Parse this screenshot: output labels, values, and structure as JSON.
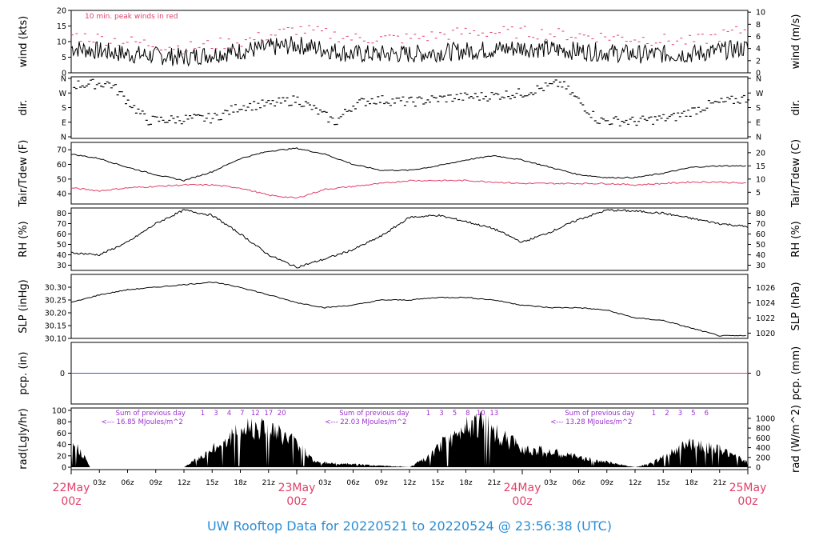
{
  "footer": {
    "title": "UW Rooftop Data for 20220521  to  20220524 @ 23:56:38  (UTC)"
  },
  "colors": {
    "primary_trace": "#000000",
    "peak_and_dewpoint": "#e0406a",
    "radiation_text": "#9b30d0",
    "precip_zero_line_before": "#2b5fd6",
    "precip_zero_line_after": "#e0406a",
    "date_labels": "#e0406a",
    "footer_title": "#2b8fd6"
  },
  "x_axis": {
    "hour_ticks": [
      "03z",
      "06z",
      "09z",
      "12z",
      "15z",
      "18z",
      "21z",
      "03z",
      "06z",
      "09z",
      "12z",
      "15z",
      "18z",
      "21z",
      "03z",
      "06z",
      "09z",
      "12z",
      "15z",
      "18z",
      "21z"
    ],
    "day_labels": [
      {
        "date": "22May",
        "time": "00z"
      },
      {
        "date": "23May",
        "time": "00z"
      },
      {
        "date": "24May",
        "time": "00z"
      },
      {
        "date": "25May",
        "time": "00z"
      }
    ]
  },
  "chart_data": [
    {
      "type": "line",
      "panel": "wind",
      "ylabel_left": "wind (kts)",
      "ylabel_right": "wind (m/s)",
      "ylim": [
        0,
        20
      ],
      "ticks_left": [
        "0",
        "5",
        "10",
        "15",
        "20"
      ],
      "ticks_right": [
        "0",
        "2",
        "4",
        "6",
        "8",
        "10"
      ],
      "annotation": "10 min. peak winds in red",
      "series": [
        {
          "name": "wind speed",
          "hours": [
            0,
            6,
            12,
            18,
            24,
            30,
            36,
            42,
            48,
            54,
            60,
            66,
            72
          ],
          "values": [
            8,
            6,
            5,
            7,
            9,
            6,
            6,
            7,
            8,
            7,
            6,
            6,
            8
          ]
        },
        {
          "name": "10 min. peak winds",
          "hours": [
            0,
            6,
            12,
            18,
            24,
            30,
            36,
            42,
            48,
            54,
            60,
            66,
            72
          ],
          "values": [
            12,
            10,
            8,
            10,
            14,
            11,
            11,
            13,
            13,
            12,
            11,
            10,
            14
          ]
        }
      ]
    },
    {
      "type": "scatter",
      "panel": "dir",
      "ylabel_left": "dir.",
      "ylabel_right": "dir.",
      "ticks": [
        "N",
        "E",
        "S",
        "W",
        "N"
      ],
      "series": [
        {
          "name": "direction (deg)",
          "hours": [
            0,
            4,
            8,
            12,
            15,
            18,
            21,
            24,
            28,
            30,
            32,
            36,
            40,
            44,
            48,
            52,
            56,
            60,
            64,
            68,
            72
          ],
          "values": [
            320,
            330,
            100,
            110,
            115,
            190,
            200,
            230,
            90,
            200,
            230,
            215,
            240,
            250,
            270,
            330,
            100,
            95,
            120,
            200,
            240
          ]
        }
      ]
    },
    {
      "type": "line",
      "panel": "temperature",
      "ylabel_left": "Tair/Tdew (F)",
      "ylabel_right": "Tair/Tdew (C)",
      "ylim": [
        33,
        75
      ],
      "ticks_left": [
        "40",
        "50",
        "60",
        "70"
      ],
      "ticks_right": [
        "5",
        "10",
        "15",
        "20"
      ],
      "series": [
        {
          "name": "air temperature",
          "hours": [
            0,
            3,
            6,
            9,
            12,
            15,
            18,
            21,
            24,
            27,
            30,
            33,
            36,
            39,
            42,
            45,
            48,
            51,
            54,
            57,
            60,
            63,
            66,
            69,
            72
          ],
          "values": [
            67,
            64,
            58,
            53,
            49,
            55,
            64,
            69,
            71,
            67,
            60,
            56,
            56,
            59,
            63,
            66,
            63,
            58,
            53,
            51,
            51,
            54,
            58,
            59,
            59
          ]
        },
        {
          "name": "dew point",
          "hours": [
            0,
            3,
            6,
            9,
            12,
            15,
            18,
            21,
            24,
            27,
            30,
            33,
            36,
            39,
            42,
            45,
            48,
            51,
            54,
            57,
            60,
            63,
            66,
            69,
            72
          ],
          "values": [
            44,
            42,
            44,
            45,
            46,
            46,
            44,
            39,
            37,
            43,
            45,
            47,
            49,
            49,
            49,
            48,
            47,
            47,
            47,
            47,
            46,
            47,
            48,
            48,
            47
          ]
        }
      ]
    },
    {
      "type": "line",
      "panel": "rh",
      "ylabel_left": "RH (%)",
      "ylabel_right": "RH (%)",
      "ylim": [
        25,
        85
      ],
      "ticks": [
        "30",
        "40",
        "50",
        "60",
        "70",
        "80"
      ],
      "series": [
        {
          "name": "relative humidity",
          "hours": [
            0,
            3,
            6,
            9,
            12,
            15,
            18,
            21,
            24,
            27,
            30,
            33,
            36,
            39,
            42,
            45,
            48,
            51,
            54,
            57,
            60,
            63,
            66,
            69,
            72
          ],
          "values": [
            42,
            40,
            52,
            70,
            83,
            78,
            60,
            40,
            28,
            36,
            45,
            58,
            76,
            78,
            72,
            65,
            52,
            62,
            74,
            83,
            82,
            80,
            75,
            70,
            67
          ]
        }
      ]
    },
    {
      "type": "line",
      "panel": "slp",
      "ylabel_left": "SLP (inHg)",
      "ylabel_right": "SLP (hPa)",
      "ylim": [
        30.1,
        30.35
      ],
      "ticks_left": [
        "30.10",
        "30.15",
        "30.20",
        "30.25",
        "30.30"
      ],
      "ticks_right": [
        "1020",
        "1022",
        "1024",
        "1026"
      ],
      "series": [
        {
          "name": "sea level pressure",
          "hours": [
            0,
            3,
            6,
            9,
            12,
            15,
            18,
            21,
            24,
            27,
            30,
            33,
            36,
            39,
            42,
            45,
            48,
            51,
            54,
            57,
            60,
            63,
            66,
            69,
            72
          ],
          "values": [
            30.24,
            30.27,
            30.29,
            30.3,
            30.31,
            30.32,
            30.3,
            30.27,
            30.24,
            30.22,
            30.23,
            30.25,
            30.25,
            30.26,
            30.26,
            30.25,
            30.23,
            30.22,
            30.22,
            30.21,
            30.18,
            30.17,
            30.14,
            30.11,
            30.11
          ]
        }
      ]
    },
    {
      "type": "line",
      "panel": "pcp",
      "ylabel_left": "pcp. (in)",
      "ylabel_right": "pcp. (mm)",
      "ticks_left": [
        "0"
      ],
      "ticks_right": [
        "0"
      ],
      "series": [
        {
          "name": "precipitation",
          "hours": [
            0,
            18,
            72
          ],
          "values": [
            0,
            0,
            0
          ]
        }
      ]
    },
    {
      "type": "area",
      "panel": "rad",
      "ylabel_left": "rad(Lgly/hr)",
      "ylabel_right": "rad (W/m^2)",
      "ylim": [
        0,
        100
      ],
      "ticks_left": [
        "0",
        "20",
        "40",
        "60",
        "80",
        "100"
      ],
      "ticks_right": [
        "0",
        "200",
        "400",
        "600",
        "800",
        "1000"
      ],
      "annotations": [
        {
          "label": "Sum of previous day",
          "value": "<--- 16.85 MJoules/m^2"
        },
        {
          "label": "Sum of previous day",
          "value": "<--- 22.03 MJoules/m^2"
        },
        {
          "label": "Sum of previous day",
          "value": "<--- 13.28 MJoules/m^2"
        }
      ],
      "hour_markers": [
        [
          "1",
          "3",
          "4",
          "7",
          "12",
          "17",
          "20"
        ],
        [
          "1",
          "3",
          "5",
          "8",
          "10",
          "13"
        ],
        [
          "1",
          "2",
          "3",
          "5",
          "6"
        ]
      ],
      "series": [
        {
          "name": "solar radiation",
          "hours": [
            0,
            1,
            2,
            3,
            12,
            15,
            17,
            18,
            19,
            20,
            21,
            22,
            24,
            26,
            36,
            38,
            40,
            41,
            42,
            43,
            44,
            45,
            46,
            48,
            60,
            62,
            64,
            66,
            68,
            70,
            72
          ],
          "values": [
            45,
            35,
            0,
            0,
            0,
            35,
            62,
            75,
            85,
            85,
            80,
            68,
            50,
            10,
            0,
            20,
            55,
            60,
            95,
            90,
            92,
            70,
            60,
            40,
            0,
            10,
            30,
            50,
            40,
            30,
            10
          ]
        }
      ]
    }
  ]
}
